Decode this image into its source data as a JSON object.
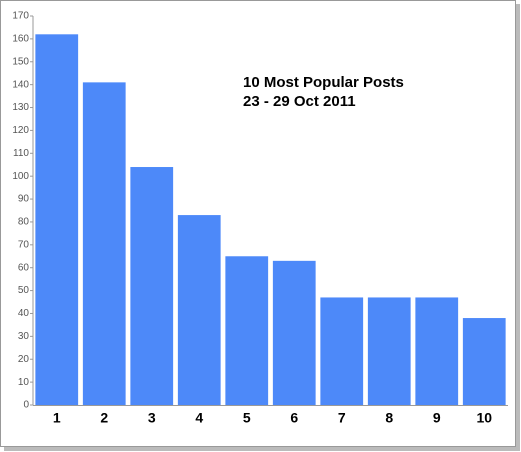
{
  "chart_data": {
    "type": "bar",
    "title": "10 Most Popular Posts",
    "subtitle": "23 - 29 Oct 2011",
    "categories": [
      "1",
      "2",
      "3",
      "4",
      "5",
      "6",
      "7",
      "8",
      "9",
      "10"
    ],
    "values": [
      162,
      141,
      104,
      83,
      65,
      63,
      47,
      47,
      47,
      38
    ],
    "color": "#4d89f9",
    "ylim": [
      0,
      170
    ],
    "yticks": [
      0,
      10,
      20,
      30,
      40,
      50,
      60,
      70,
      80,
      90,
      100,
      110,
      120,
      130,
      140,
      150,
      160,
      170
    ],
    "grid": false
  }
}
